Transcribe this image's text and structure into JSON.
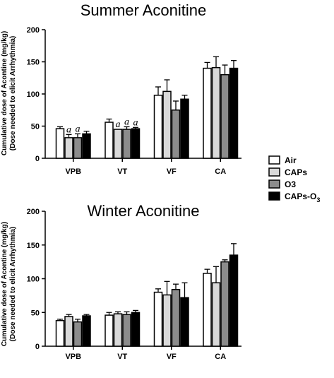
{
  "legend": [
    {
      "label": "Air",
      "color": "#ffffff"
    },
    {
      "label": "CAPs",
      "color": "#d9d9d9"
    },
    {
      "label": "O3",
      "color": "#8c8c8c"
    },
    {
      "label": "CAPs-O",
      "label_sub": "3",
      "color": "#000000"
    }
  ],
  "chart_data": [
    {
      "type": "bar",
      "title": "Summer Aconitine",
      "ylabel_line1": "Cumulative dose of Acontine (mg/kg)",
      "ylabel_line2": "(Dose needed to elicit Arrhythmia)",
      "ylim": [
        0,
        200
      ],
      "yticks": [
        "0",
        "50",
        "100",
        "150",
        "200"
      ],
      "categories": [
        "VPB",
        "VT",
        "VF",
        "CA"
      ],
      "series": [
        {
          "name": "Air",
          "values": [
            46,
            56,
            98,
            140
          ],
          "errors": [
            3,
            5,
            13,
            9
          ]
        },
        {
          "name": "CAPs",
          "values": [
            32,
            45,
            104,
            141
          ],
          "errors": [
            5,
            0,
            18,
            17
          ]
        },
        {
          "name": "O3",
          "values": [
            32,
            45,
            75,
            130
          ],
          "errors": [
            6,
            4,
            14,
            15
          ]
        },
        {
          "name": "CAPs-O3",
          "values": [
            38,
            46,
            92,
            140
          ],
          "errors": [
            4,
            2,
            6,
            12
          ]
        }
      ],
      "annotations": [
        {
          "category": "VPB",
          "series": "CAPs",
          "text": "a"
        },
        {
          "category": "VPB",
          "series": "O3",
          "text": "a"
        },
        {
          "category": "VT",
          "series": "CAPs",
          "text": "a"
        },
        {
          "category": "VT",
          "series": "O3",
          "text": "a"
        },
        {
          "category": "VT",
          "series": "CAPs-O3",
          "text": "a"
        }
      ]
    },
    {
      "type": "bar",
      "title": "Winter Aconitine",
      "ylabel_line1": "Cumulative dose of Acontine (mg/kg)",
      "ylabel_line2": "(Dose needed to elicit Arrhythmia)",
      "ylim": [
        0,
        200
      ],
      "yticks": [
        "0",
        "50",
        "100",
        "150",
        "200"
      ],
      "categories": [
        "VPB",
        "VT",
        "VF",
        "CA"
      ],
      "series": [
        {
          "name": "Air",
          "values": [
            38,
            46,
            80,
            108
          ],
          "errors": [
            2,
            4,
            5,
            6
          ]
        },
        {
          "name": "CAPs",
          "values": [
            44,
            48,
            76,
            94
          ],
          "errors": [
            3,
            3,
            20,
            24
          ]
        },
        {
          "name": "O3",
          "values": [
            36,
            47,
            84,
            125
          ],
          "errors": [
            4,
            4,
            8,
            3
          ]
        },
        {
          "name": "CAPs-O3",
          "values": [
            45,
            50,
            72,
            135
          ],
          "errors": [
            2,
            3,
            22,
            17
          ]
        }
      ],
      "annotations": []
    }
  ]
}
